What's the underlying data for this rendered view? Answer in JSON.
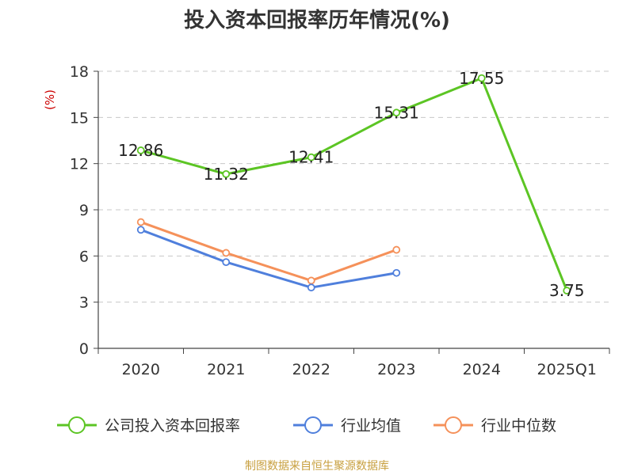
{
  "chart_data": {
    "type": "line",
    "title": "投入资本回报率历年情况(%)",
    "unit_label": "(%)",
    "categories": [
      "2020",
      "2021",
      "2022",
      "2023",
      "2024",
      "2025Q1"
    ],
    "ylim": [
      0,
      18
    ],
    "yticks": [
      0,
      3,
      6,
      9,
      12,
      15,
      18
    ],
    "grid": true,
    "legend_position": "bottom",
    "series": [
      {
        "name": "公司投入资本回报率",
        "color": "#5cc524",
        "values": [
          12.86,
          11.32,
          12.41,
          15.31,
          17.55,
          3.75
        ],
        "labels": [
          "12.86",
          "11.32",
          "12.41",
          "15.31",
          "17.55",
          "3.75"
        ]
      },
      {
        "name": "行业均值",
        "color": "#4f7fdc",
        "values": [
          7.7,
          5.6,
          3.95,
          4.9,
          null,
          null
        ]
      },
      {
        "name": "行业中位数",
        "color": "#f5915a",
        "values": [
          8.2,
          6.2,
          4.4,
          6.4,
          null,
          null
        ]
      }
    ]
  },
  "source_text": "制图数据来自恒生聚源数据库"
}
